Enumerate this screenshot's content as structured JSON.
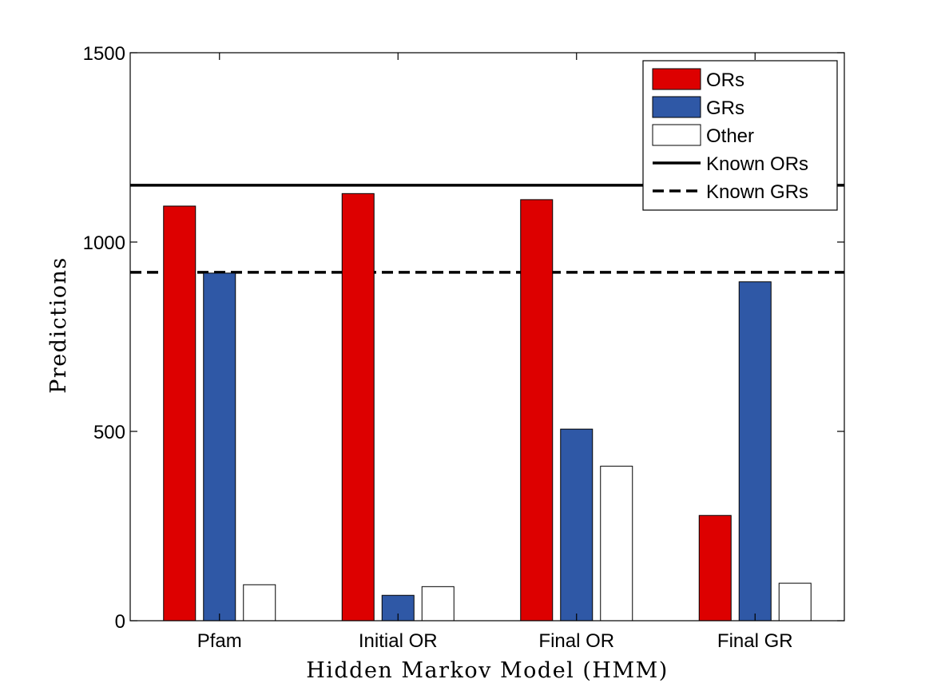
{
  "chart_data": {
    "type": "bar",
    "title": "",
    "xlabel": "Hidden Markov Model (HMM)",
    "ylabel": "Predictions",
    "ylim": [
      0,
      1500
    ],
    "yticks": [
      0,
      500,
      1000,
      1500
    ],
    "categories": [
      "Pfam",
      "Initial OR",
      "Final OR",
      "Final GR"
    ],
    "series": [
      {
        "name": "ORs",
        "color": "#dd0000",
        "values": [
          1095,
          1128,
          1112,
          278
        ]
      },
      {
        "name": "GRs",
        "color": "#2f58a6",
        "values": [
          918,
          67,
          506,
          895
        ]
      },
      {
        "name": "Other",
        "color": "#ffffff",
        "values": [
          95,
          90,
          408,
          99
        ]
      }
    ],
    "reference_lines": [
      {
        "name": "Known ORs",
        "value": 1150,
        "style": "solid"
      },
      {
        "name": "Known GRs",
        "value": 920,
        "style": "dashed"
      }
    ],
    "legend_position": "top-right",
    "grid": false
  }
}
